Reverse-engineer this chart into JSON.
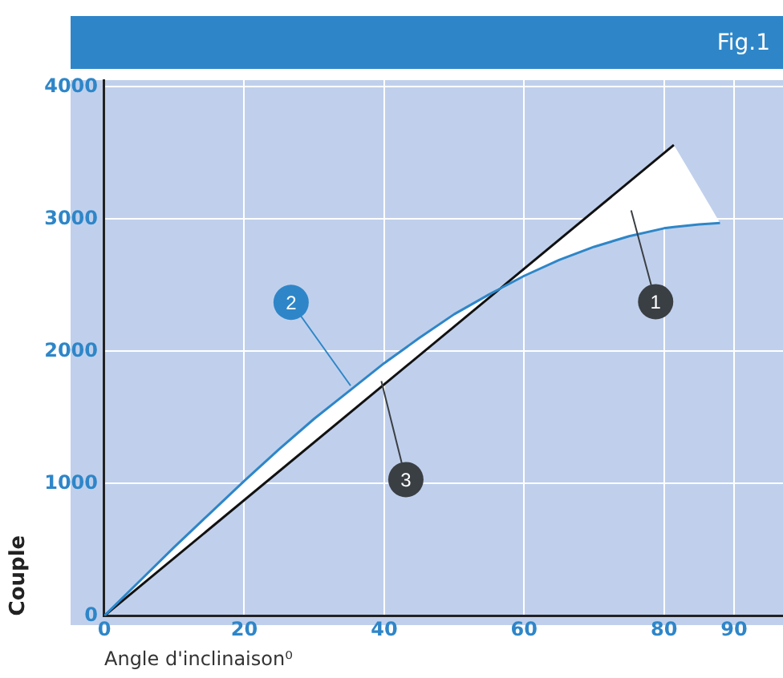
{
  "chart_data": {
    "type": "line",
    "title": "Fig.1",
    "xlabel": "Angle d'inclinaison⁰",
    "ylabel": "Couple",
    "xlim": [
      0,
      97
    ],
    "xticks": [
      0,
      20,
      40,
      60,
      80,
      90
    ],
    "ylim": [
      0,
      4050
    ],
    "yticks": [
      0,
      1000,
      2000,
      3000,
      4000
    ],
    "grid": true,
    "legend": false,
    "marker": "none",
    "line_style": "solid",
    "series": [
      {
        "color": "#2e86c8",
        "x": [
          0,
          5,
          10,
          15,
          20,
          25,
          30,
          35,
          40,
          45,
          50,
          55,
          60,
          65,
          70,
          75,
          80,
          81.4,
          85,
          88
        ],
        "values": [
          0,
          260,
          520,
          770,
          1020,
          1260,
          1490,
          1700,
          1910,
          2100,
          2280,
          2430,
          2570,
          2690,
          2790,
          2870,
          2930,
          2940,
          2960,
          2970
        ],
        "lower": [
          0,
          220,
          440,
          660,
          870,
          1090,
          1310,
          1530,
          1750,
          1970,
          2190,
          2410,
          2570,
          2690,
          2790,
          2870,
          2930,
          2940,
          2960,
          2970
        ],
        "upper": [
          0,
          260,
          520,
          770,
          1020,
          1260,
          1490,
          1700,
          1910,
          2100,
          2280,
          2430,
          2620,
          2840,
          3060,
          3280,
          3500,
          3560,
          3240,
          2970
        ]
      },
      {
        "color": "#111111",
        "x": [
          0,
          81.4
        ],
        "values": [
          0,
          3560
        ]
      }
    ],
    "annotations": [
      "1",
      {
        "text": "2",
        "x": 35.2,
        "y": 1740
      },
      {
        "text": "3",
        "x": 39.6,
        "y": 1775
      }
    ]
  }
}
